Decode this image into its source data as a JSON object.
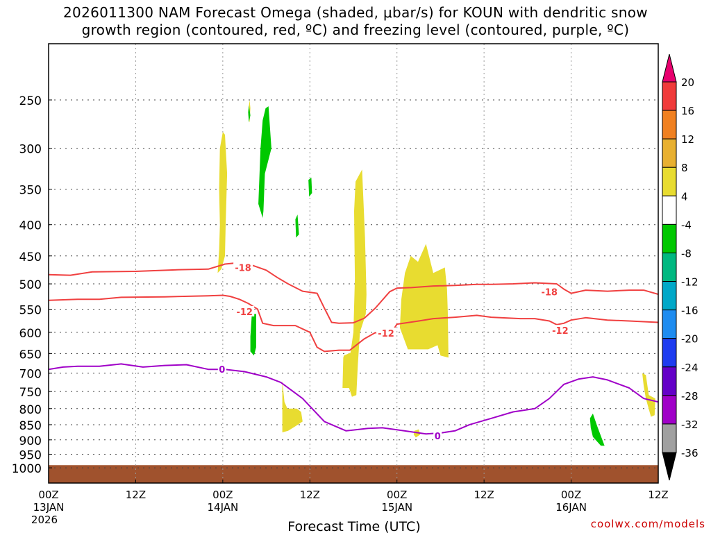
{
  "title": {
    "line1": "2026011300 NAM Forecast Omega (shaded, μbar/s) for KOUN with dendritic snow",
    "line2": "growth region (contoured, red, ºC) and freezing level (contoured, purple, ºC)"
  },
  "watermark": "coolwx.com/models",
  "chart_data": {
    "type": "time-height",
    "xlabel": "Forecast Time (UTC)",
    "xlim": [
      0,
      84
    ],
    "x_ticks": [
      {
        "h": 0,
        "label": "00Z",
        "sub1": "13JAN",
        "sub2": "2026"
      },
      {
        "h": 12,
        "label": "12Z",
        "sub1": "",
        "sub2": ""
      },
      {
        "h": 24,
        "label": "00Z",
        "sub1": "14JAN",
        "sub2": ""
      },
      {
        "h": 36,
        "label": "12Z",
        "sub1": "",
        "sub2": ""
      },
      {
        "h": 48,
        "label": "00Z",
        "sub1": "15JAN",
        "sub2": ""
      },
      {
        "h": 60,
        "label": "12Z",
        "sub1": "",
        "sub2": ""
      },
      {
        "h": 72,
        "label": "00Z",
        "sub1": "16JAN",
        "sub2": ""
      },
      {
        "h": 84,
        "label": "12Z",
        "sub1": "",
        "sub2": ""
      }
    ],
    "ylabel": "",
    "y_scale": "log-pressure",
    "ylim_hPa": [
      1050,
      200
    ],
    "y_ticks": [
      250,
      300,
      350,
      400,
      450,
      500,
      550,
      600,
      650,
      700,
      750,
      800,
      850,
      900,
      950,
      1000
    ],
    "grid": true,
    "colorbar": {
      "labels": [
        "20",
        "16",
        "12",
        "8",
        "4",
        "-4",
        "-8",
        "-12",
        "-16",
        "-20",
        "-24",
        "-28",
        "-32",
        "-36"
      ],
      "colors": [
        "#e8006e",
        "#f03a3a",
        "#f08020",
        "#e8b030",
        "#e8dc30",
        "#ffffff",
        "#00c800",
        "#00b880",
        "#00a8c8",
        "#1e8cf0",
        "#1e3cf0",
        "#6400c8",
        "#a000c8",
        "#a0a0a0",
        "#000000"
      ]
    },
    "ground": {
      "color": "#a0522d",
      "pressure_hPa": 990
    },
    "omega_regions": [
      {
        "color": "#e8dc30",
        "points": [
          [
            23.3,
            480
          ],
          [
            23.5,
            440
          ],
          [
            23.6,
            400
          ],
          [
            23.5,
            350
          ],
          [
            23.6,
            300
          ],
          [
            24.0,
            282
          ],
          [
            24.3,
            285
          ],
          [
            24.6,
            330
          ],
          [
            24.4,
            400
          ],
          [
            24.3,
            450
          ],
          [
            23.8,
            473
          ]
        ]
      },
      {
        "color": "#e8dc30",
        "points": [
          [
            27.5,
            262
          ],
          [
            27.7,
            250
          ],
          [
            27.8,
            258
          ],
          [
            27.7,
            272
          ],
          [
            27.6,
            270
          ]
        ]
      },
      {
        "color": "#e8dc30",
        "points": [
          [
            32.2,
            720
          ],
          [
            32.5,
            780
          ],
          [
            32.9,
            800
          ],
          [
            34.2,
            800
          ],
          [
            34.8,
            810
          ],
          [
            35.0,
            840
          ],
          [
            34.0,
            855
          ],
          [
            33.0,
            870
          ],
          [
            32.2,
            875
          ],
          [
            32.2,
            800
          ]
        ]
      },
      {
        "color": "#e8dc30",
        "points": [
          [
            40.5,
            740
          ],
          [
            40.6,
            660
          ],
          [
            40.7,
            655
          ],
          [
            41.6,
            648
          ],
          [
            42.0,
            600
          ],
          [
            42.2,
            490
          ],
          [
            42.1,
            380
          ],
          [
            42.3,
            340
          ],
          [
            43.2,
            325
          ],
          [
            43.6,
            420
          ],
          [
            43.8,
            520
          ],
          [
            43.7,
            560
          ],
          [
            42.9,
            600
          ],
          [
            42.6,
            680
          ],
          [
            42.4,
            760
          ],
          [
            41.8,
            765
          ],
          [
            41.4,
            740
          ]
        ]
      },
      {
        "color": "#e8dc30",
        "points": [
          [
            48.4,
            590
          ],
          [
            48.6,
            530
          ],
          [
            49.1,
            480
          ],
          [
            49.9,
            450
          ],
          [
            50.9,
            460
          ],
          [
            52.0,
            430
          ],
          [
            53.0,
            480
          ],
          [
            54.6,
            470
          ],
          [
            54.9,
            510
          ],
          [
            55.0,
            555
          ],
          [
            55.1,
            660
          ],
          [
            54.0,
            655
          ],
          [
            53.6,
            630
          ],
          [
            52.3,
            640
          ],
          [
            49.5,
            640
          ]
        ]
      },
      {
        "color": "#e8dc30",
        "points": [
          [
            50.4,
            870
          ],
          [
            51.0,
            865
          ],
          [
            51.2,
            882
          ],
          [
            50.6,
            892
          ],
          [
            50.3,
            882
          ]
        ]
      },
      {
        "color": "#e8dc30",
        "points": [
          [
            81.8,
            700
          ],
          [
            82.3,
            705
          ],
          [
            82.7,
            760
          ],
          [
            83.6,
            770
          ],
          [
            83.5,
            820
          ],
          [
            83.0,
            825
          ],
          [
            82.3,
            770
          ],
          [
            82.0,
            735
          ]
        ]
      },
      {
        "color": "#00c800",
        "points": [
          [
            28.9,
            370
          ],
          [
            29.2,
            300
          ],
          [
            29.5,
            270
          ],
          [
            29.9,
            258
          ],
          [
            30.3,
            256
          ],
          [
            30.7,
            300
          ],
          [
            29.8,
            330
          ],
          [
            29.6,
            380
          ],
          [
            29.5,
            390
          ]
        ]
      },
      {
        "color": "#00c800",
        "points": [
          [
            27.5,
            262
          ],
          [
            27.6,
            255
          ],
          [
            27.8,
            265
          ],
          [
            27.6,
            272
          ]
        ]
      },
      {
        "color": "#00c800",
        "points": [
          [
            34.0,
            392
          ],
          [
            34.3,
            385
          ],
          [
            34.5,
            415
          ],
          [
            34.1,
            420
          ]
        ]
      },
      {
        "color": "#00c800",
        "points": [
          [
            35.8,
            338
          ],
          [
            36.2,
            335
          ],
          [
            36.3,
            355
          ],
          [
            35.9,
            360
          ]
        ]
      },
      {
        "color": "#00c800",
        "points": [
          [
            27.8,
            610
          ],
          [
            28.0,
            560
          ],
          [
            28.6,
            560
          ],
          [
            28.6,
            635
          ],
          [
            28.3,
            655
          ],
          [
            27.8,
            645
          ]
        ]
      },
      {
        "color": "#00c800",
        "points": [
          [
            74.6,
            830
          ],
          [
            75.0,
            815
          ],
          [
            75.6,
            855
          ],
          [
            76.3,
            900
          ],
          [
            76.6,
            920
          ],
          [
            76.1,
            920
          ],
          [
            75.0,
            890
          ],
          [
            74.7,
            860
          ]
        ]
      }
    ],
    "series": [
      {
        "name": "-18",
        "color": "#f04040",
        "label_at": [
          [
            26.8,
            470
          ],
          [
            69.0,
            515
          ]
        ],
        "points": [
          [
            0,
            483
          ],
          [
            3,
            484
          ],
          [
            6,
            478
          ],
          [
            12,
            477
          ],
          [
            18,
            474
          ],
          [
            22,
            473
          ],
          [
            24.3,
            464
          ],
          [
            26,
            462
          ],
          [
            28,
            466
          ],
          [
            30,
            475
          ],
          [
            31.5,
            488
          ],
          [
            33,
            500
          ],
          [
            35,
            514
          ],
          [
            37,
            518
          ],
          [
            38,
            548
          ],
          [
            39,
            578
          ],
          [
            40,
            580
          ],
          [
            42,
            579
          ],
          [
            43.5,
            569
          ],
          [
            45,
            548
          ],
          [
            47,
            515
          ],
          [
            48,
            508
          ],
          [
            50,
            507
          ],
          [
            53,
            504
          ],
          [
            56,
            503
          ],
          [
            59,
            501
          ],
          [
            61,
            501
          ],
          [
            64,
            500
          ],
          [
            67,
            498
          ],
          [
            70,
            500
          ],
          [
            71,
            510
          ],
          [
            72,
            518
          ],
          [
            74,
            512
          ],
          [
            77,
            514
          ],
          [
            80,
            512
          ],
          [
            82,
            512
          ],
          [
            84,
            520
          ]
        ]
      },
      {
        "name": "-12",
        "color": "#f04040",
        "label_at": [
          [
            27.0,
            555
          ],
          [
            46.5,
            602
          ],
          [
            70.5,
            596
          ]
        ],
        "points": [
          [
            0,
            532
          ],
          [
            4,
            530
          ],
          [
            7,
            530
          ],
          [
            10,
            526
          ],
          [
            16,
            525
          ],
          [
            22,
            523
          ],
          [
            24.0,
            522
          ],
          [
            25,
            524
          ],
          [
            26.3,
            530
          ],
          [
            27.5,
            538
          ],
          [
            28.8,
            550
          ],
          [
            29.5,
            580
          ],
          [
            31,
            585
          ],
          [
            34,
            585
          ],
          [
            36.0,
            600
          ],
          [
            37,
            635
          ],
          [
            38,
            645
          ],
          [
            40,
            642
          ],
          [
            41.5,
            642
          ],
          [
            43.5,
            615
          ],
          [
            45.0,
            601
          ],
          [
            47.0,
            607
          ],
          [
            48,
            582
          ],
          [
            51,
            575
          ],
          [
            53,
            570
          ],
          [
            56,
            567
          ],
          [
            59,
            563
          ],
          [
            61,
            567
          ],
          [
            65,
            570
          ],
          [
            67,
            570
          ],
          [
            69,
            575
          ],
          [
            70,
            583
          ],
          [
            71,
            580
          ],
          [
            72,
            573
          ],
          [
            74,
            568
          ],
          [
            77,
            573
          ],
          [
            80,
            575
          ],
          [
            84,
            578
          ]
        ]
      },
      {
        "name": "0",
        "color": "#a000c8",
        "label_at": [
          [
            23.9,
            690
          ],
          [
            53.6,
            887
          ]
        ],
        "points": [
          [
            0,
            690
          ],
          [
            2,
            684
          ],
          [
            4,
            682
          ],
          [
            7,
            682
          ],
          [
            10,
            676
          ],
          [
            13,
            684
          ],
          [
            16,
            680
          ],
          [
            19,
            678
          ],
          [
            22,
            690
          ],
          [
            24.3,
            690
          ],
          [
            27,
            696
          ],
          [
            30,
            710
          ],
          [
            32,
            725
          ],
          [
            35,
            770
          ],
          [
            38,
            840
          ],
          [
            41,
            870
          ],
          [
            44,
            862
          ],
          [
            46,
            860
          ],
          [
            49,
            870
          ],
          [
            52,
            880
          ],
          [
            54,
            877
          ],
          [
            56,
            870
          ],
          [
            58,
            850
          ],
          [
            61,
            830
          ],
          [
            64,
            810
          ],
          [
            67,
            800
          ],
          [
            69,
            770
          ],
          [
            71,
            730
          ],
          [
            73,
            716
          ],
          [
            75,
            710
          ],
          [
            77,
            718
          ],
          [
            80,
            740
          ],
          [
            82,
            770
          ],
          [
            84,
            780
          ]
        ]
      }
    ]
  }
}
